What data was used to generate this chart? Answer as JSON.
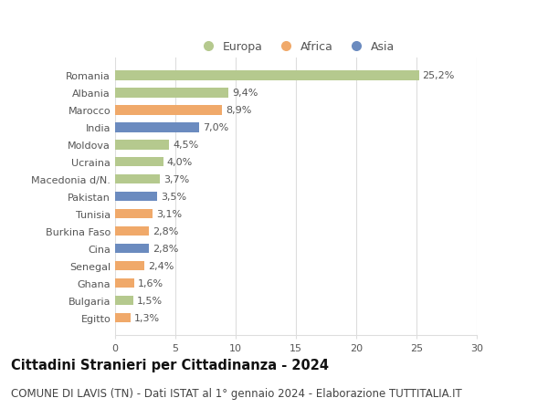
{
  "countries": [
    "Romania",
    "Albania",
    "Marocco",
    "India",
    "Moldova",
    "Ucraina",
    "Macedonia d/N.",
    "Pakistan",
    "Tunisia",
    "Burkina Faso",
    "Cina",
    "Senegal",
    "Ghana",
    "Bulgaria",
    "Egitto"
  ],
  "values": [
    25.2,
    9.4,
    8.9,
    7.0,
    4.5,
    4.0,
    3.7,
    3.5,
    3.1,
    2.8,
    2.8,
    2.4,
    1.6,
    1.5,
    1.3
  ],
  "labels": [
    "25,2%",
    "9,4%",
    "8,9%",
    "7,0%",
    "4,5%",
    "4,0%",
    "3,7%",
    "3,5%",
    "3,1%",
    "2,8%",
    "2,8%",
    "2,4%",
    "1,6%",
    "1,5%",
    "1,3%"
  ],
  "continent": [
    "Europa",
    "Europa",
    "Africa",
    "Asia",
    "Europa",
    "Europa",
    "Europa",
    "Asia",
    "Africa",
    "Africa",
    "Asia",
    "Africa",
    "Africa",
    "Europa",
    "Africa"
  ],
  "colors": {
    "Europa": "#b5c98e",
    "Africa": "#f0a96a",
    "Asia": "#6b8bbf"
  },
  "title": "Cittadini Stranieri per Cittadinanza - 2024",
  "subtitle": "COMUNE DI LAVIS (TN) - Dati ISTAT al 1° gennaio 2024 - Elaborazione TUTTITALIA.IT",
  "xlim": [
    0,
    30
  ],
  "xticks": [
    0,
    5,
    10,
    15,
    20,
    25,
    30
  ],
  "background_color": "#ffffff",
  "grid_color": "#dddddd",
  "bar_height": 0.55,
  "title_fontsize": 10.5,
  "subtitle_fontsize": 8.5,
  "label_fontsize": 8,
  "tick_fontsize": 8,
  "legend_fontsize": 9
}
